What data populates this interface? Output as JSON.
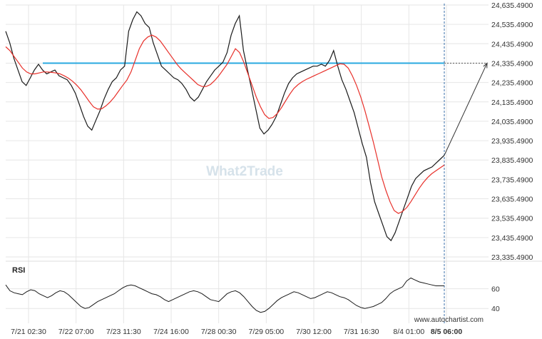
{
  "chart_data": {
    "type": "line",
    "watermark": "What2Trade",
    "credit": "www.autochartist.com",
    "indicator_label": "RSI",
    "y_ticks": [
      "24,635.4900",
      "24,535.4900",
      "24,435.4900",
      "24,335.4900",
      "24,235.4900",
      "24,135.4900",
      "24,035.4900",
      "23,935.4900",
      "23,835.4900",
      "23,735.4900",
      "23,635.4900",
      "23,535.4900",
      "23,435.4900",
      "23,335.4900"
    ],
    "y_tick_values": [
      24635.49,
      24535.49,
      24435.49,
      24335.49,
      24235.49,
      24135.49,
      24035.49,
      23935.49,
      23835.49,
      23735.49,
      23635.49,
      23535.49,
      23435.49,
      23335.49
    ],
    "ylim": [
      23335.49,
      24635.49
    ],
    "x_ticks": [
      "7/21 02:30",
      "7/22 07:00",
      "7/23 11:30",
      "7/24 16:00",
      "7/28 00:30",
      "7/29 05:00",
      "7/30 12:00",
      "7/31 16:30",
      "8/4 01:00",
      "8/5 06:00"
    ],
    "x_tick_index": [
      0,
      18,
      36,
      54,
      72,
      90,
      108,
      126,
      144,
      162
    ],
    "rsi_ticks": [
      "60",
      "40"
    ],
    "rsi_tick_values": [
      60,
      40
    ],
    "rsi_ylim": [
      30,
      75
    ],
    "resistance_level": 24335.49,
    "target_level": 24335.49,
    "colors": {
      "price": "#1a1a1a",
      "ma": "#e8302a",
      "resistance": "#29a9e0",
      "projection": "#333333",
      "grid": "#e6e6e6",
      "rsi": "#1a1a1a"
    },
    "series": [
      {
        "values": [
          24500,
          24440,
          24360,
          24300,
          24240,
          24220,
          24260,
          24300,
          24330,
          24300,
          24280,
          24290,
          24300,
          24270,
          24260,
          24250,
          24220,
          24180,
          24120,
          24060,
          24010,
          23990,
          24040,
          24090,
          24150,
          24200,
          24240,
          24260,
          24300,
          24320,
          24500,
          24560,
          24600,
          24580,
          24540,
          24520,
          24440,
          24380,
          24320,
          24300,
          24280,
          24260,
          24250,
          24230,
          24200,
          24160,
          24140,
          24160,
          24200,
          24240,
          24270,
          24300,
          24320,
          24340,
          24390,
          24480,
          24540,
          24580,
          24400,
          24300,
          24200,
          24100,
          24000,
          23970,
          23990,
          24020,
          24060,
          24120,
          24180,
          24230,
          24260,
          24280,
          24290,
          24300,
          24310,
          24320,
          24320,
          24330,
          24320,
          24350,
          24400,
          24320,
          24250,
          24200,
          24140,
          24080,
          24000,
          23920,
          23850,
          23720,
          23620,
          23560,
          23500,
          23440,
          23420,
          23460,
          23520,
          23580,
          23640,
          23700,
          23740,
          23760,
          23780,
          23790,
          23800,
          23820,
          23840,
          23860
        ]
      },
      {
        "values": [
          24420,
          24400,
          24370,
          24340,
          24310,
          24290,
          24280,
          24280,
          24285,
          24290,
          24290,
          24288,
          24285,
          24280,
          24270,
          24258,
          24242,
          24222,
          24198,
          24168,
          24138,
          24110,
          24098,
          24100,
          24115,
          24135,
          24160,
          24190,
          24220,
          24248,
          24290,
          24350,
          24410,
          24450,
          24470,
          24480,
          24470,
          24450,
          24420,
          24390,
          24360,
          24330,
          24305,
          24285,
          24265,
          24245,
          24225,
          24215,
          24215,
          24225,
          24245,
          24270,
          24300,
          24330,
          24370,
          24410,
          24390,
          24340,
          24280,
          24220,
          24160,
          24110,
          24070,
          24050,
          24055,
          24075,
          24105,
          24140,
          24175,
          24205,
          24225,
          24240,
          24252,
          24262,
          24272,
          24282,
          24292,
          24302,
          24312,
          24322,
          24332,
          24330,
          24310,
          24270,
          24220,
          24160,
          24090,
          24010,
          23930,
          23840,
          23750,
          23680,
          23620,
          23575,
          23560,
          23570,
          23590,
          23620,
          23655,
          23690,
          23720,
          23745,
          23765,
          23780,
          23795,
          23810
        ]
      }
    ],
    "rsi_values": [
      64,
      58,
      56,
      55,
      54,
      57,
      59,
      58,
      55,
      53,
      51,
      53,
      56,
      58,
      57,
      54,
      50,
      46,
      42,
      40,
      41,
      44,
      47,
      49,
      51,
      53,
      55,
      58,
      61,
      63,
      64,
      63,
      61,
      59,
      57,
      55,
      54,
      52,
      49,
      47,
      49,
      51,
      53,
      55,
      57,
      58,
      57,
      55,
      52,
      49,
      48,
      47,
      51,
      55,
      57,
      58,
      56,
      52,
      47,
      42,
      38,
      36,
      37,
      40,
      44,
      48,
      51,
      53,
      55,
      57,
      56,
      54,
      52,
      50,
      51,
      53,
      55,
      57,
      56,
      54,
      52,
      51,
      49,
      46,
      43,
      41,
      40,
      41,
      42,
      44,
      46,
      50,
      55,
      58,
      60,
      62,
      68,
      71,
      69,
      67,
      66,
      65,
      64,
      63,
      63,
      63
    ]
  }
}
